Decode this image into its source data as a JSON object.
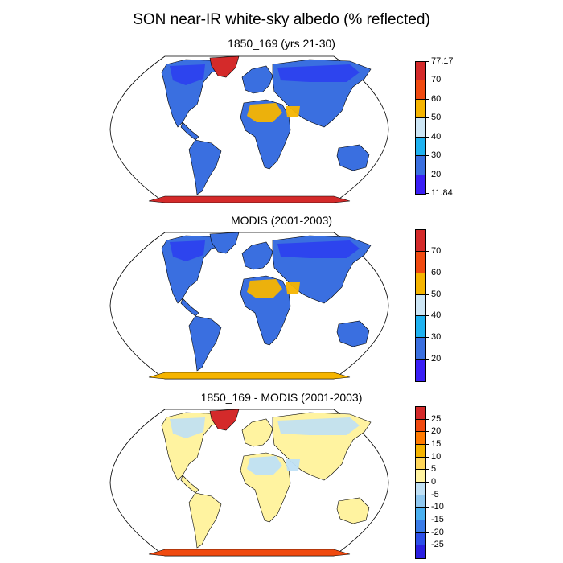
{
  "title": "SON near-IR white-sky albedo (% reflected)",
  "panels": [
    {
      "title": "1850_169 (yrs 21-30)",
      "land_color": "#3a6fe0",
      "north_color": "#2c3ff0",
      "desert_color": "#f5b400",
      "antarctica_color": "#d42a2a",
      "greenland_color": "#d42a2a",
      "colorbar": {
        "colors": [
          "#d42a2a",
          "#f04a10",
          "#f5b400",
          "#cde6f5",
          "#1fb2f0",
          "#3a6fe0",
          "#3a1ff5"
        ],
        "labels": [
          "77.17",
          "70",
          "60",
          "50",
          "40",
          "30",
          "20",
          "11.84"
        ]
      }
    },
    {
      "title": "MODIS (2001-2003)",
      "land_color": "#3a6fe0",
      "north_color": "#2c3ff0",
      "desert_color": "#f5b400",
      "antarctica_color": "#f5b400",
      "greenland_color": "#3a6fe0",
      "colorbar": {
        "colors": [
          "#d42a2a",
          "#f04a10",
          "#f5b400",
          "#cde6f5",
          "#1fb2f0",
          "#3a6fe0",
          "#3a1ff5"
        ],
        "labels": [
          "70",
          "60",
          "50",
          "40",
          "30",
          "20"
        ]
      }
    },
    {
      "title": "1850_169 - MODIS (2001-2003)",
      "land_color": "#fff3a0",
      "north_color": "#bfe0f5",
      "desert_color": "#bfe0f5",
      "antarctica_color": "#f04a10",
      "greenland_color": "#d42a2a",
      "colorbar": {
        "colors": [
          "#d42a2a",
          "#f04a10",
          "#ff7a00",
          "#f5b400",
          "#ffd75a",
          "#fff3a0",
          "#bfe0f5",
          "#8fc8f0",
          "#4bb0f0",
          "#3a7ce8",
          "#2d4fe8",
          "#2a1fe0"
        ],
        "labels": [
          "25",
          "20",
          "15",
          "10",
          "5",
          "0",
          "-5",
          "-10",
          "-15",
          "-20",
          "-25"
        ]
      }
    }
  ]
}
